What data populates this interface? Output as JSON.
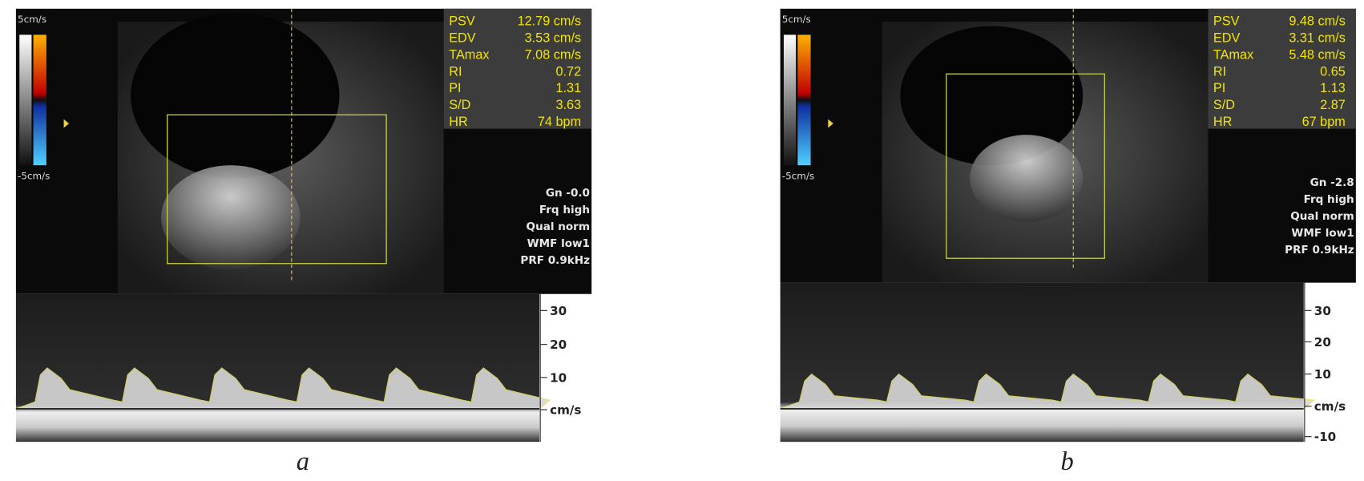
{
  "panels": [
    {
      "label": "a",
      "scale_top": "5cm/s",
      "scale_bottom": "-5cm/s",
      "measurements": [
        {
          "name": "PSV",
          "value": "12.79 cm/s"
        },
        {
          "name": "EDV",
          "value": "3.53 cm/s"
        },
        {
          "name": "TAmax",
          "value": "7.08 cm/s"
        },
        {
          "name": "RI",
          "value": "0.72"
        },
        {
          "name": "PI",
          "value": "1.31"
        },
        {
          "name": "S/D",
          "value": "3.63"
        },
        {
          "name": "HR",
          "value": "74 bpm"
        }
      ],
      "settings": [
        "Gn -0.0",
        "Frq high",
        "Qual norm",
        "WMF low1",
        "PRF  0.9kHz"
      ],
      "doppler_scale": [
        "30",
        "20",
        "10",
        "cm/s"
      ]
    },
    {
      "label": "b",
      "scale_top": "5cm/s",
      "scale_bottom": "-5cm/s",
      "measurements": [
        {
          "name": "PSV",
          "value": "9.48 cm/s"
        },
        {
          "name": "EDV",
          "value": "3.31 cm/s"
        },
        {
          "name": "TAmax",
          "value": "5.48 cm/s"
        },
        {
          "name": "RI",
          "value": "0.65"
        },
        {
          "name": "PI",
          "value": "1.13"
        },
        {
          "name": "S/D",
          "value": "2.87"
        },
        {
          "name": "HR",
          "value": "67 bpm"
        }
      ],
      "settings": [
        "Gn -2.8",
        "Frq high",
        "Qual norm",
        "WMF low1",
        "PRF  0.9kHz"
      ],
      "doppler_scale": [
        "30",
        "20",
        "10",
        "cm/s",
        "-10"
      ]
    }
  ]
}
